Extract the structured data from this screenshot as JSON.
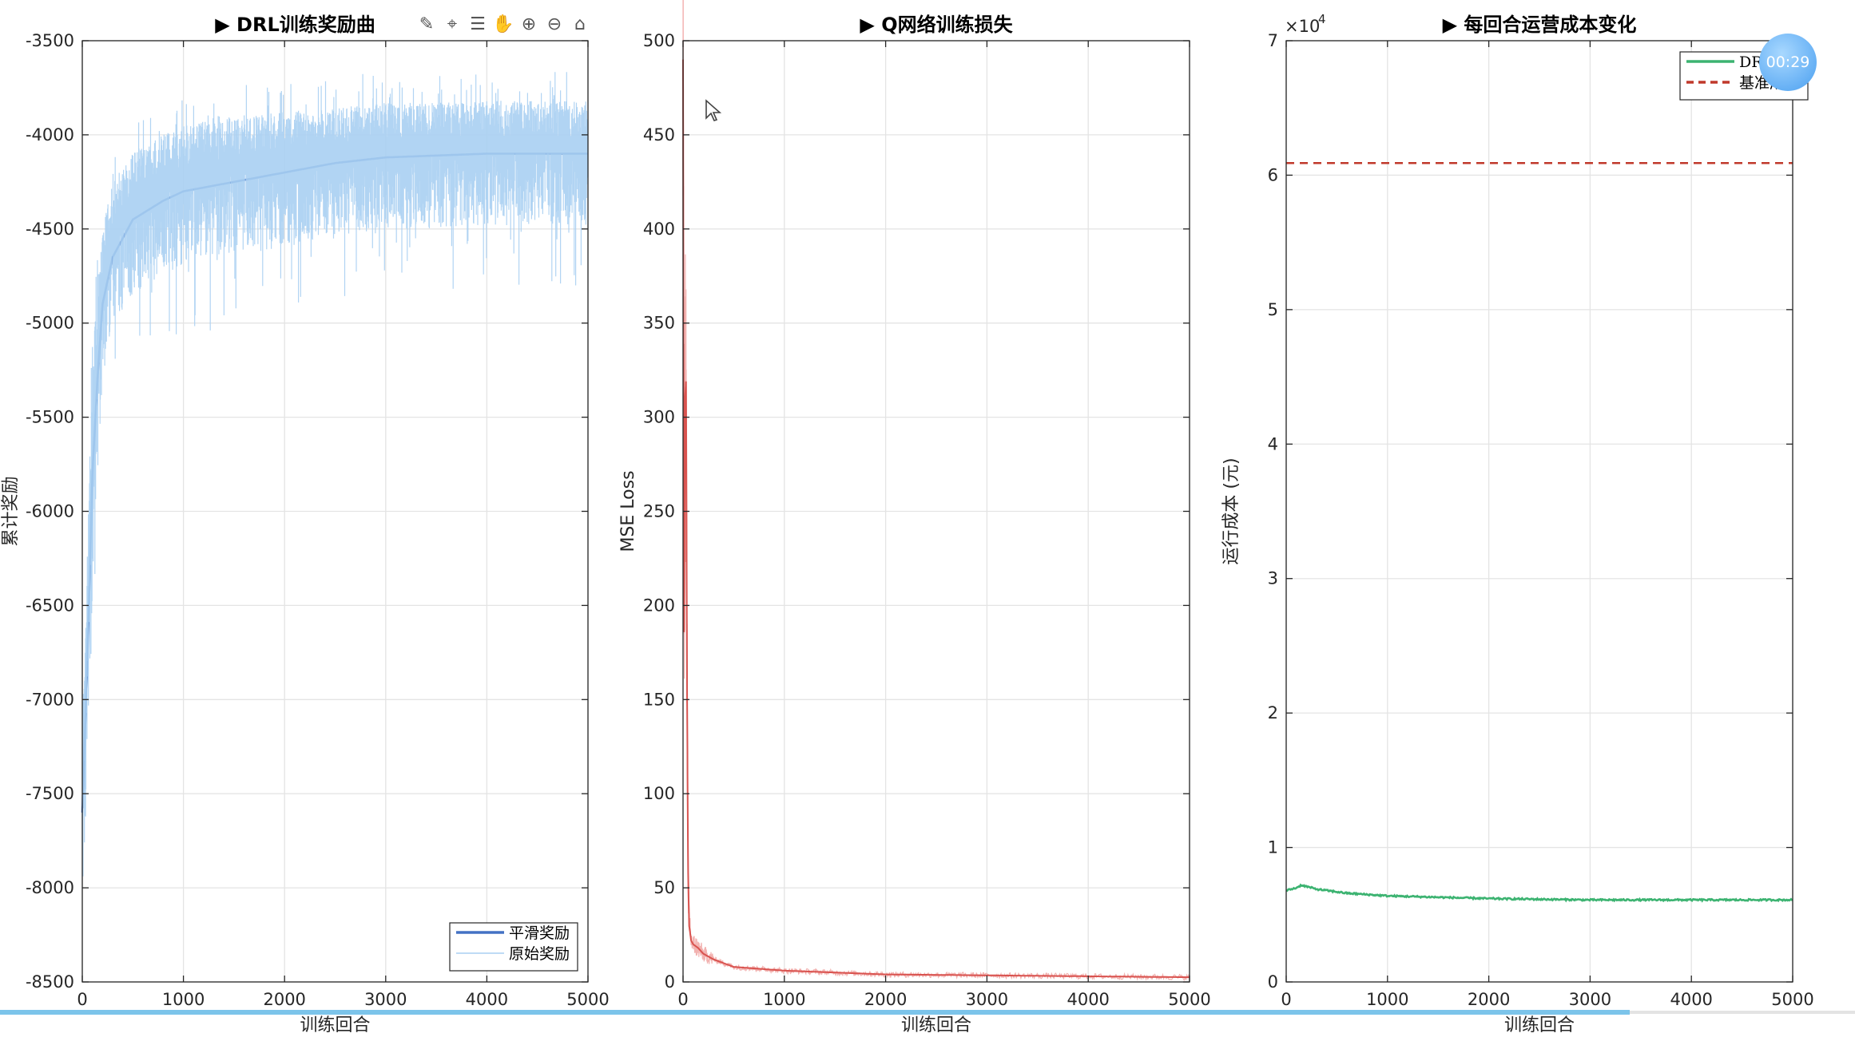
{
  "window": {
    "timer_text": "00:29",
    "toolbar_icons": [
      "brush-icon",
      "data-tip-icon",
      "legend-toggle-icon",
      "pan-hand-icon",
      "zoom-in-icon",
      "zoom-out-icon",
      "home-icon"
    ]
  },
  "chart_data": [
    {
      "type": "line",
      "title": "▶ DRL训练奖励曲",
      "xlabel": "训练回合",
      "ylabel": "累计奖励",
      "xlim": [
        0,
        5000
      ],
      "ylim": [
        -8500,
        -3500
      ],
      "xticks": [
        0,
        1000,
        2000,
        3000,
        4000,
        5000
      ],
      "yticks": [
        -3500,
        -4000,
        -4500,
        -5000,
        -5500,
        -6000,
        -6500,
        -7000,
        -7500,
        -8000,
        -8500
      ],
      "grid": true,
      "legend": "bottom-right",
      "series": [
        {
          "name": "平滑奖励",
          "color": "#4472c4",
          "x": [
            0,
            50,
            100,
            150,
            200,
            300,
            500,
            800,
            1000,
            1500,
            2000,
            2500,
            3000,
            3500,
            4000,
            4500,
            5000
          ],
          "y": [
            -7600,
            -6800,
            -5800,
            -5300,
            -4900,
            -4650,
            -4450,
            -4350,
            -4300,
            -4250,
            -4200,
            -4150,
            -4120,
            -4110,
            -4100,
            -4100,
            -4100
          ]
        },
        {
          "name": "原始奖励",
          "color": "#a9cff2",
          "x": [
            0,
            50,
            100,
            150,
            200,
            300,
            500,
            800,
            1000,
            1500,
            2000,
            2500,
            3000,
            3500,
            4000,
            4500,
            5000
          ],
          "y": [
            -7600,
            -6800,
            -5800,
            -5300,
            -4900,
            -4650,
            -4450,
            -4350,
            -4300,
            -4250,
            -4200,
            -4150,
            -4120,
            -4110,
            -4100,
            -4100,
            -4100
          ],
          "band_low": [
            -8200,
            -7400,
            -6500,
            -5800,
            -5300,
            -5000,
            -4850,
            -4750,
            -4700,
            -4650,
            -4600,
            -4550,
            -4500,
            -4500,
            -4480,
            -4480,
            -4480
          ],
          "band_high": [
            -7000,
            -6200,
            -5200,
            -4800,
            -4500,
            -4250,
            -4100,
            -4000,
            -3950,
            -3900,
            -3880,
            -3850,
            -3830,
            -3830,
            -3820,
            -3820,
            -3820
          ]
        }
      ]
    },
    {
      "type": "line",
      "title": "▶ Q网络训练损失",
      "xlabel": "训练回合",
      "ylabel": "MSE Loss",
      "xlim": [
        0,
        5000
      ],
      "ylim": [
        0,
        500
      ],
      "xticks": [
        0,
        1000,
        2000,
        3000,
        4000,
        5000
      ],
      "yticks": [
        0,
        50,
        100,
        150,
        200,
        250,
        300,
        350,
        400,
        450,
        500
      ],
      "grid": true,
      "series": [
        {
          "color": "#d9534f",
          "x": [
            0,
            10,
            20,
            30,
            40,
            50,
            60,
            80,
            100,
            150,
            200,
            300,
            500,
            1000,
            1500,
            2000,
            3000,
            4000,
            5000
          ],
          "y": [
            490,
            180,
            310,
            320,
            150,
            60,
            30,
            22,
            20,
            18,
            15,
            12,
            8,
            6,
            5,
            4,
            3.5,
            3,
            2.5
          ]
        }
      ]
    },
    {
      "type": "line",
      "title": "▶ 每回合运营成本变化",
      "xlabel": "训练回合",
      "ylabel": "运行成本 (元)",
      "y_multiplier": "×10",
      "y_multiplier_exp": "4",
      "xlim": [
        0,
        5000
      ],
      "ylim": [
        0,
        7
      ],
      "xticks": [
        0,
        1000,
        2000,
        3000,
        4000,
        5000
      ],
      "yticks": [
        0,
        1,
        2,
        3,
        4,
        5,
        6,
        7
      ],
      "grid": true,
      "legend": "top-right",
      "series": [
        {
          "name": "DRL成",
          "color": "#3cb371",
          "x": [
            0,
            100,
            150,
            300,
            600,
            1000,
            1500,
            2000,
            3000,
            4000,
            5000
          ],
          "y": [
            0.68,
            0.7,
            0.72,
            0.69,
            0.66,
            0.64,
            0.63,
            0.62,
            0.61,
            0.61,
            0.61
          ]
        },
        {
          "name": "基准成本",
          "color": "#c0392b",
          "dashed": true,
          "x": [
            0,
            5000
          ],
          "y": [
            6.09,
            6.09
          ]
        }
      ]
    }
  ]
}
